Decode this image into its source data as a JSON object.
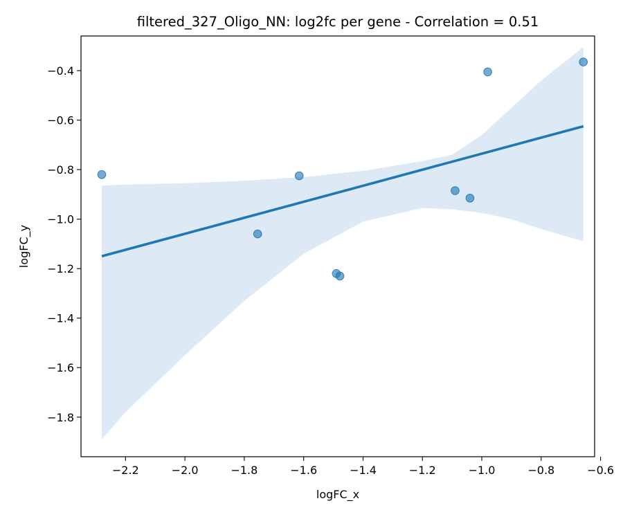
{
  "chart_data": {
    "type": "scatter",
    "title": "filtered_327_Oligo_NN: log2fc per gene - Correlation = 0.51",
    "xlabel": "logFC_x",
    "ylabel": "logFC_y",
    "xlim": [
      -2.35,
      -0.62
    ],
    "ylim": [
      -1.96,
      -0.26
    ],
    "xticks": [
      -2.2,
      -2.0,
      -1.8,
      -1.6,
      -1.4,
      -1.2,
      -1.0,
      -0.8,
      -0.6
    ],
    "xtick_labels": [
      "−2.2",
      "−2.0",
      "−1.8",
      "−1.6",
      "−1.4",
      "−1.2",
      "−1.0",
      "−0.8",
      "−0.6"
    ],
    "yticks": [
      -1.8,
      -1.6,
      -1.4,
      -1.2,
      -1.0,
      -0.8,
      -0.6,
      -0.4
    ],
    "ytick_labels": [
      "−1.8",
      "−1.6",
      "−1.4",
      "−1.2",
      "−1.0",
      "−0.8",
      "−0.6",
      "−0.4"
    ],
    "grid": false,
    "points": [
      {
        "x": -2.28,
        "y": -0.82
      },
      {
        "x": -1.755,
        "y": -1.06
      },
      {
        "x": -1.615,
        "y": -0.825
      },
      {
        "x": -1.49,
        "y": -1.22
      },
      {
        "x": -1.478,
        "y": -1.23
      },
      {
        "x": -1.09,
        "y": -0.885
      },
      {
        "x": -1.04,
        "y": -0.915
      },
      {
        "x": -0.98,
        "y": -0.405
      },
      {
        "x": -0.658,
        "y": -0.365
      }
    ],
    "regression_line": {
      "x": [
        -2.28,
        -0.658
      ],
      "y": [
        -1.15,
        -0.625
      ]
    },
    "confidence_band": {
      "upper": [
        {
          "x": -2.28,
          "y": -0.865
        },
        {
          "x": -2.2,
          "y": -0.86
        },
        {
          "x": -2.0,
          "y": -0.855
        },
        {
          "x": -1.8,
          "y": -0.845
        },
        {
          "x": -1.6,
          "y": -0.83
        },
        {
          "x": -1.4,
          "y": -0.805
        },
        {
          "x": -1.2,
          "y": -0.765
        },
        {
          "x": -1.1,
          "y": -0.74
        },
        {
          "x": -1.0,
          "y": -0.66
        },
        {
          "x": -0.9,
          "y": -0.55
        },
        {
          "x": -0.8,
          "y": -0.44
        },
        {
          "x": -0.658,
          "y": -0.305
        }
      ],
      "lower": [
        {
          "x": -2.28,
          "y": -1.89
        },
        {
          "x": -2.2,
          "y": -1.78
        },
        {
          "x": -2.0,
          "y": -1.55
        },
        {
          "x": -1.8,
          "y": -1.33
        },
        {
          "x": -1.6,
          "y": -1.14
        },
        {
          "x": -1.4,
          "y": -1.01
        },
        {
          "x": -1.2,
          "y": -0.955
        },
        {
          "x": -1.1,
          "y": -0.96
        },
        {
          "x": -1.0,
          "y": -0.975
        },
        {
          "x": -0.9,
          "y": -1.0
        },
        {
          "x": -0.8,
          "y": -1.04
        },
        {
          "x": -0.658,
          "y": -1.09
        }
      ]
    },
    "colors": {
      "points": "#1f77b4",
      "line": "#1f77b4",
      "band": "#dde9f4"
    }
  }
}
